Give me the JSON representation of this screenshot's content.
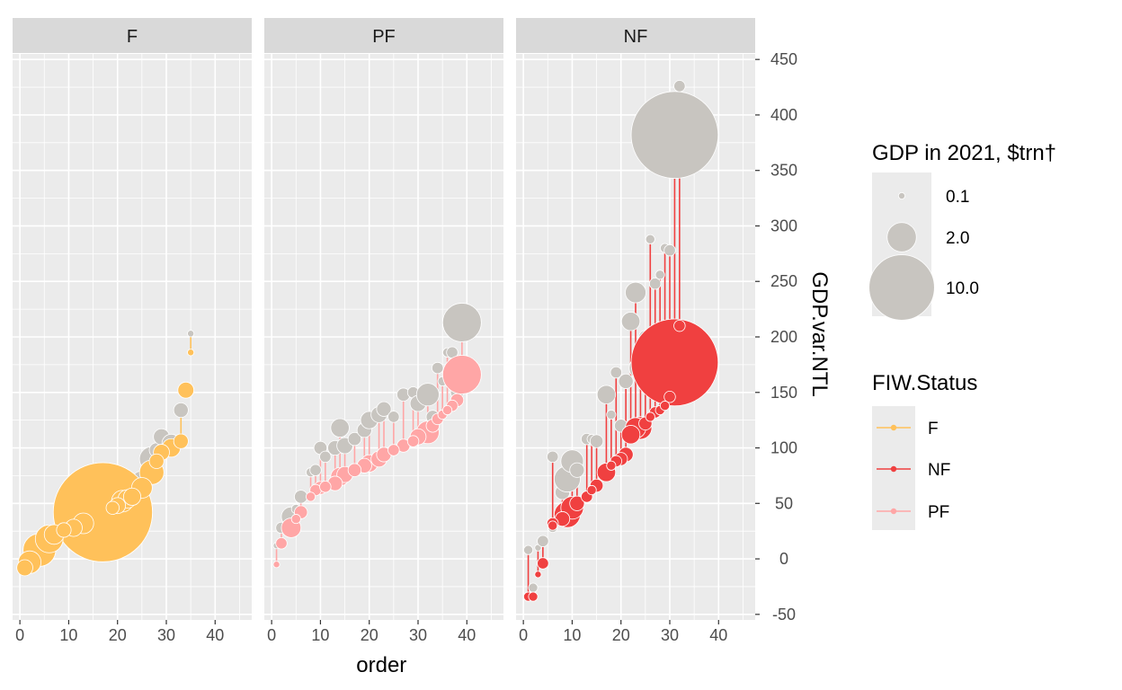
{
  "chart_data": {
    "type": "scatter",
    "facets": [
      {
        "label": "F",
        "color": "#FFC15A",
        "points": [
          {
            "x": 1,
            "raw": -8,
            "adj": -8,
            "gdp": 0.6
          },
          {
            "x": 2,
            "raw": -3,
            "adj": -3,
            "gdp": 1.2
          },
          {
            "x": 4,
            "raw": 8,
            "adj": 8,
            "gdp": 2.5
          },
          {
            "x": 6,
            "raw": 18,
            "adj": 18,
            "gdp": 1.8
          },
          {
            "x": 7,
            "raw": 22,
            "adj": 22,
            "gdp": 0.9
          },
          {
            "x": 9,
            "raw": 26,
            "adj": 26,
            "gdp": 0.5
          },
          {
            "x": 11,
            "raw": 28,
            "adj": 28,
            "gdp": 0.7
          },
          {
            "x": 13,
            "raw": 32,
            "adj": 32,
            "gdp": 1.0
          },
          {
            "x": 17,
            "raw": 42,
            "adj": 42,
            "gdp": 23.0
          },
          {
            "x": 19,
            "raw": 46,
            "adj": 46,
            "gdp": 0.4
          },
          {
            "x": 20,
            "raw": 70,
            "adj": 48,
            "gdp": 0.6
          },
          {
            "x": 21,
            "raw": 54,
            "adj": 52,
            "gdp": 1.1
          },
          {
            "x": 22,
            "raw": 60,
            "adj": 54,
            "gdp": 0.8
          },
          {
            "x": 23,
            "raw": 68,
            "adj": 56,
            "gdp": 0.7
          },
          {
            "x": 25,
            "raw": 70,
            "adj": 64,
            "gdp": 1.0
          },
          {
            "x": 27,
            "raw": 90,
            "adj": 78,
            "gdp": 1.4
          },
          {
            "x": 28,
            "raw": 98,
            "adj": 88,
            "gdp": 0.5
          },
          {
            "x": 29,
            "raw": 110,
            "adj": 96,
            "gdp": 0.6
          },
          {
            "x": 31,
            "raw": 104,
            "adj": 100,
            "gdp": 0.8
          },
          {
            "x": 33,
            "raw": 134,
            "adj": 106,
            "gdp": 0.5
          },
          {
            "x": 34,
            "raw": 152,
            "adj": 152,
            "gdp": 0.6
          },
          {
            "x": 35,
            "raw": 203,
            "adj": 186,
            "gdp": 0.1
          }
        ]
      },
      {
        "label": "PF",
        "color": "#FFA6A6",
        "points": [
          {
            "x": 1,
            "raw": 12,
            "adj": -5,
            "gdp": 0.1
          },
          {
            "x": 2,
            "raw": 28,
            "adj": 14,
            "gdp": 0.3
          },
          {
            "x": 4,
            "raw": 38,
            "adj": 28,
            "gdp": 0.9
          },
          {
            "x": 5,
            "raw": 45,
            "adj": 36,
            "gdp": 0.2
          },
          {
            "x": 6,
            "raw": 56,
            "adj": 42,
            "gdp": 0.4
          },
          {
            "x": 8,
            "raw": 78,
            "adj": 56,
            "gdp": 0.2
          },
          {
            "x": 9,
            "raw": 80,
            "adj": 62,
            "gdp": 0.3
          },
          {
            "x": 10,
            "raw": 100,
            "adj": 64,
            "gdp": 0.4
          },
          {
            "x": 11,
            "raw": 92,
            "adj": 65,
            "gdp": 0.3
          },
          {
            "x": 13,
            "raw": 100,
            "adj": 68,
            "gdp": 0.5
          },
          {
            "x": 14,
            "raw": 118,
            "adj": 74,
            "gdp": 0.8
          },
          {
            "x": 15,
            "raw": 102,
            "adj": 76,
            "gdp": 0.6
          },
          {
            "x": 17,
            "raw": 108,
            "adj": 80,
            "gdp": 0.4
          },
          {
            "x": 19,
            "raw": 116,
            "adj": 84,
            "gdp": 0.5
          },
          {
            "x": 20,
            "raw": 125,
            "adj": 86,
            "gdp": 0.7
          },
          {
            "x": 22,
            "raw": 130,
            "adj": 90,
            "gdp": 0.6
          },
          {
            "x": 23,
            "raw": 135,
            "adj": 94,
            "gdp": 0.5
          },
          {
            "x": 25,
            "raw": 128,
            "adj": 98,
            "gdp": 0.3
          },
          {
            "x": 27,
            "raw": 148,
            "adj": 102,
            "gdp": 0.4
          },
          {
            "x": 29,
            "raw": 150,
            "adj": 106,
            "gdp": 0.3
          },
          {
            "x": 30,
            "raw": 140,
            "adj": 110,
            "gdp": 0.6
          },
          {
            "x": 32,
            "raw": 148,
            "adj": 114,
            "gdp": 1.2
          },
          {
            "x": 33,
            "raw": 128,
            "adj": 120,
            "gdp": 0.4
          },
          {
            "x": 34,
            "raw": 172,
            "adj": 126,
            "gdp": 0.3
          },
          {
            "x": 35,
            "raw": 160,
            "adj": 130,
            "gdp": 0.2
          },
          {
            "x": 36,
            "raw": 186,
            "adj": 134,
            "gdp": 0.2
          },
          {
            "x": 37,
            "raw": 186,
            "adj": 138,
            "gdp": 0.3
          },
          {
            "x": 38,
            "raw": 150,
            "adj": 143,
            "gdp": 0.4
          },
          {
            "x": 39,
            "raw": 213,
            "adj": 166,
            "gdp": 3.5
          }
        ]
      },
      {
        "label": "NF",
        "color": "#F04040",
        "points": [
          {
            "x": 1,
            "raw": 8,
            "adj": -34,
            "gdp": 0.2
          },
          {
            "x": 2,
            "raw": -26,
            "adj": -34,
            "gdp": 0.2
          },
          {
            "x": 3,
            "raw": 10,
            "adj": -14,
            "gdp": 0.1
          },
          {
            "x": 4,
            "raw": 16,
            "adj": -4,
            "gdp": 0.3
          },
          {
            "x": 6,
            "raw": 28,
            "adj": 30,
            "gdp": 0.2
          },
          {
            "x": 6,
            "raw": 92,
            "adj": 32,
            "gdp": 0.3
          },
          {
            "x": 8,
            "raw": 60,
            "adj": 36,
            "gdp": 0.5
          },
          {
            "x": 9,
            "raw": 72,
            "adj": 40,
            "gdp": 1.6
          },
          {
            "x": 10,
            "raw": 88,
            "adj": 46,
            "gdp": 1.2
          },
          {
            "x": 11,
            "raw": 80,
            "adj": 50,
            "gdp": 0.5
          },
          {
            "x": 13,
            "raw": 108,
            "adj": 56,
            "gdp": 0.3
          },
          {
            "x": 14,
            "raw": 108,
            "adj": 62,
            "gdp": 0.2
          },
          {
            "x": 15,
            "raw": 106,
            "adj": 66,
            "gdp": 0.4
          },
          {
            "x": 17,
            "raw": 148,
            "adj": 78,
            "gdp": 0.8
          },
          {
            "x": 18,
            "raw": 130,
            "adj": 84,
            "gdp": 0.2
          },
          {
            "x": 19,
            "raw": 168,
            "adj": 88,
            "gdp": 0.3
          },
          {
            "x": 20,
            "raw": 120,
            "adj": 90,
            "gdp": 0.4
          },
          {
            "x": 21,
            "raw": 160,
            "adj": 94,
            "gdp": 0.5
          },
          {
            "x": 22,
            "raw": 214,
            "adj": 112,
            "gdp": 0.8
          },
          {
            "x": 23,
            "raw": 240,
            "adj": 118,
            "gdp": 1.0
          },
          {
            "x": 24,
            "raw": 172,
            "adj": 118,
            "gdp": 1.2
          },
          {
            "x": 25,
            "raw": 200,
            "adj": 122,
            "gdp": 0.4
          },
          {
            "x": 26,
            "raw": 288,
            "adj": 128,
            "gdp": 0.2
          },
          {
            "x": 27,
            "raw": 248,
            "adj": 132,
            "gdp": 0.3
          },
          {
            "x": 28,
            "raw": 256,
            "adj": 134,
            "gdp": 0.2
          },
          {
            "x": 29,
            "raw": 280,
            "adj": 138,
            "gdp": 0.2
          },
          {
            "x": 30,
            "raw": 278,
            "adj": 146,
            "gdp": 0.3
          },
          {
            "x": 31,
            "raw": 382,
            "adj": 177,
            "gdp": 17.7
          },
          {
            "x": 32,
            "raw": 426,
            "adj": 210,
            "gdp": 0.3
          }
        ]
      }
    ],
    "raw_point_color": "#C8C5C0",
    "xlabel": "order",
    "ylabel": "GDP.var.NTL",
    "x_ticks": [
      0,
      10,
      20,
      30,
      40
    ],
    "xlim": [
      -1.5,
      47.5
    ],
    "y_ticks": [
      -50,
      0,
      50,
      100,
      150,
      200,
      250,
      300,
      350,
      400,
      450
    ],
    "ylim": [
      -55,
      455
    ],
    "size_legend": {
      "title": "GDP in 2021, $trn†",
      "entries": [
        {
          "label": "0.1",
          "value": 0.1
        },
        {
          "label": "2.0",
          "value": 2.0
        },
        {
          "label": "10.0",
          "value": 10.0
        }
      ]
    },
    "color_legend": {
      "title": "FIW.Status",
      "entries": [
        {
          "label": "F",
          "color": "#FFC15A"
        },
        {
          "label": "NF",
          "color": "#F04040"
        },
        {
          "label": "PF",
          "color": "#FFA6A6"
        }
      ]
    }
  }
}
